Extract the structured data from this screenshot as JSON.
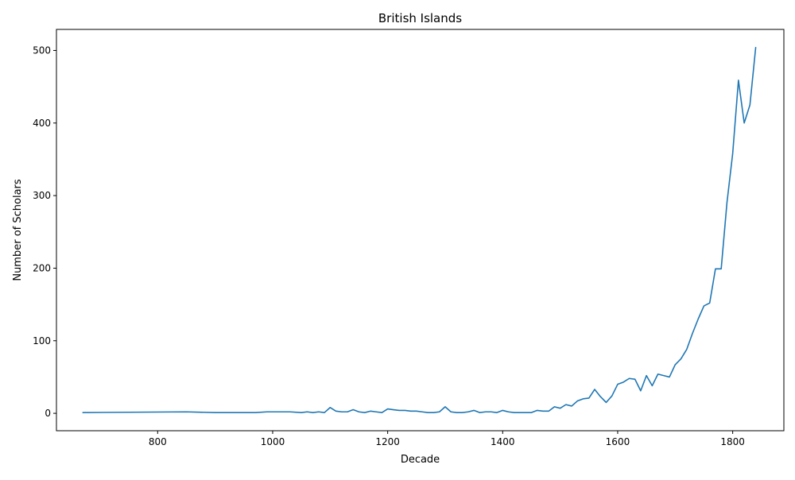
{
  "chart_data": {
    "type": "line",
    "title": "British Islands",
    "xlabel": "Decade",
    "ylabel": "Number of Scholars",
    "xlim": [
      624,
      1889
    ],
    "ylim": [
      -24,
      529
    ],
    "xticks": [
      800,
      1000,
      1200,
      1400,
      1600,
      1800
    ],
    "yticks": [
      0,
      100,
      200,
      300,
      400,
      500
    ],
    "grid": false,
    "legend": "none",
    "line_color": "#1f77b4",
    "series": [
      {
        "x": [
          670,
          850,
          900,
          970,
          990,
          1000,
          1030,
          1050,
          1060,
          1070,
          1080,
          1090,
          1100,
          1110,
          1120,
          1130,
          1140,
          1150,
          1160,
          1170,
          1180,
          1190,
          1200,
          1210,
          1220,
          1230,
          1240,
          1250,
          1260,
          1270,
          1280,
          1290,
          1300,
          1310,
          1320,
          1330,
          1340,
          1350,
          1360,
          1370,
          1380,
          1390,
          1400,
          1410,
          1420,
          1430,
          1440,
          1450,
          1460,
          1470,
          1480,
          1490,
          1500,
          1510,
          1520,
          1530,
          1540,
          1550,
          1560,
          1570,
          1580,
          1590,
          1600,
          1610,
          1620,
          1630,
          1640,
          1650,
          1660,
          1670,
          1680,
          1690,
          1700,
          1710,
          1720,
          1730,
          1740,
          1750,
          1760,
          1770,
          1780,
          1790,
          1800,
          1810,
          1820,
          1830,
          1840
        ],
        "values": [
          1,
          2,
          1,
          1,
          2,
          2,
          2,
          1,
          2,
          1,
          2,
          1,
          8,
          3,
          2,
          2,
          5,
          2,
          1,
          3,
          2,
          1,
          6,
          5,
          4,
          4,
          3,
          3,
          2,
          1,
          1,
          2,
          9,
          2,
          1,
          1,
          2,
          4,
          1,
          2,
          2,
          1,
          4,
          2,
          1,
          1,
          1,
          1,
          4,
          3,
          3,
          9,
          7,
          12,
          10,
          17,
          20,
          21,
          33,
          23,
          15,
          24,
          40,
          43,
          48,
          47,
          31,
          52,
          38,
          54,
          52,
          50,
          67,
          75,
          88,
          110,
          130,
          148,
          152,
          199,
          199,
          290,
          358,
          459,
          400,
          425,
          504
        ]
      }
    ]
  }
}
